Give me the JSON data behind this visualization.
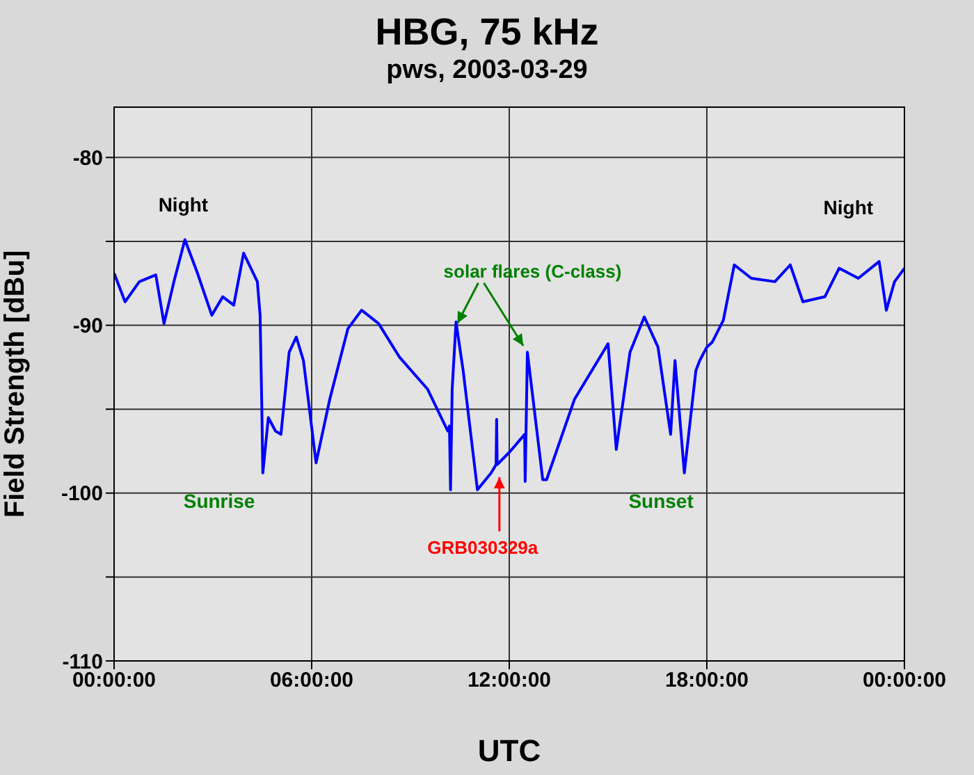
{
  "chart_data": {
    "type": "line",
    "title": "HBG, 75 kHz",
    "subtitle": "pws, 2003-03-29",
    "xlabel": "UTC",
    "ylabel": "Field Strength [dBu]",
    "x": [
      "2003-03-29T00:00",
      "2003-03-29T00:20",
      "2003-03-29T00:46",
      "2003-03-29T01:16",
      "2003-03-29T01:31",
      "2003-03-29T01:49",
      "2003-03-29T02:09",
      "2003-03-29T02:32",
      "2003-03-29T02:58",
      "2003-03-29T03:18",
      "2003-03-29T03:38",
      "2003-03-29T03:56",
      "2003-03-29T04:21",
      "2003-03-29T04:26",
      "2003-03-29T04:29",
      "2003-03-29T04:31",
      "2003-03-29T04:41",
      "2003-03-29T04:54",
      "2003-03-29T05:04",
      "2003-03-29T05:19",
      "2003-03-29T05:32",
      "2003-03-29T05:45",
      "2003-03-29T06:08",
      "2003-03-29T06:33",
      "2003-03-29T07:06",
      "2003-03-29T07:31",
      "2003-03-29T08:02",
      "2003-03-29T08:40",
      "2003-03-29T09:31",
      "2003-03-29T10:08",
      "2003-03-29T10:11",
      "2003-03-29T10:13",
      "2003-03-29T10:16",
      "2003-03-29T10:23",
      "2003-03-29T10:36",
      "2003-03-29T11:02",
      "2003-03-29T11:27",
      "2003-03-29T11:36",
      "2003-03-29T11:37",
      "2003-03-29T11:38",
      "2003-03-29T12:02",
      "2003-03-29T12:28",
      "2003-03-29T12:29",
      "2003-03-29T12:33",
      "2003-03-29T13:01",
      "2003-03-29T13:08",
      "2003-03-29T13:59",
      "2003-03-29T15:00",
      "2003-03-29T15:15",
      "2003-03-29T15:40",
      "2003-03-29T16:06",
      "2003-03-29T16:31",
      "2003-03-29T16:54",
      "2003-03-29T17:02",
      "2003-03-29T17:19",
      "2003-03-29T17:40",
      "2003-03-29T17:47",
      "2003-03-29T18:00",
      "2003-03-29T18:10",
      "2003-03-29T18:30",
      "2003-03-29T18:50",
      "2003-03-29T19:21",
      "2003-03-29T20:04",
      "2003-03-29T20:32",
      "2003-03-29T20:55",
      "2003-03-29T21:35",
      "2003-03-29T22:01",
      "2003-03-29T22:36",
      "2003-03-29T23:14",
      "2003-03-29T23:27",
      "2003-03-29T23:42",
      "2003-03-30T00:00"
    ],
    "series": [
      {
        "color": "#0000ff",
        "values": [
          -86.9,
          -88.6,
          -87.4,
          -87,
          -89.9,
          -87.4,
          -84.9,
          -86.9,
          -89.4,
          -88.3,
          -88.8,
          -85.7,
          -87.4,
          -89.4,
          -94.6,
          -98.8,
          -95.5,
          -96.3,
          -96.5,
          -91.6,
          -90.7,
          -92.1,
          -98.2,
          -94.4,
          -90.2,
          -89.1,
          -89.9,
          -91.9,
          -93.8,
          -96.3,
          -96,
          -99.8,
          -93.8,
          -89.8,
          -92.7,
          -99.8,
          -98.8,
          -98.3,
          -95.6,
          -98.3,
          -97.5,
          -96.5,
          -99.3,
          -91.6,
          -99.2,
          -99.2,
          -94.4,
          -91.1,
          -97.4,
          -91.6,
          -89.5,
          -91.3,
          -96.5,
          -92.1,
          -98.8,
          -92.7,
          -92.1,
          -91.3,
          -91,
          -89.7,
          -86.4,
          -87.2,
          -87.4,
          -86.4,
          -88.6,
          -88.3,
          -86.6,
          -87.2,
          -86.2,
          -89.1,
          -87.4,
          -86.6
        ]
      }
    ],
    "xlim": [
      "2003-03-29T00:00",
      "2003-03-30T00:00"
    ],
    "xticks": [
      {
        "value": "2003-03-29T00:00",
        "label": "00:00:00"
      },
      {
        "value": "2003-03-29T06:00",
        "label": "06:00:00"
      },
      {
        "value": "2003-03-29T12:00",
        "label": "12:00:00"
      },
      {
        "value": "2003-03-29T18:00",
        "label": "18:00:00"
      },
      {
        "value": "2003-03-30T00:00",
        "label": "00:00:00"
      }
    ],
    "ylim": [
      -110,
      -77
    ],
    "yticks": [
      -110,
      {
        "value": -105,
        "label": null
      },
      -100,
      {
        "value": -95,
        "label": null
      },
      -90,
      {
        "value": -85,
        "label": null
      },
      -80
    ],
    "grid": true,
    "marker": "none",
    "line_style": "solid",
    "annotations": [
      "Night",
      "Night",
      "Sunrise",
      "Sunset",
      {
        "text": "solar flares (C-class)",
        "x": "2003-03-29T10:23",
        "y": -89.8
      },
      {
        "text": "GRB030329a",
        "x": "2003-03-29T11:42",
        "y": -98.8
      }
    ]
  }
}
